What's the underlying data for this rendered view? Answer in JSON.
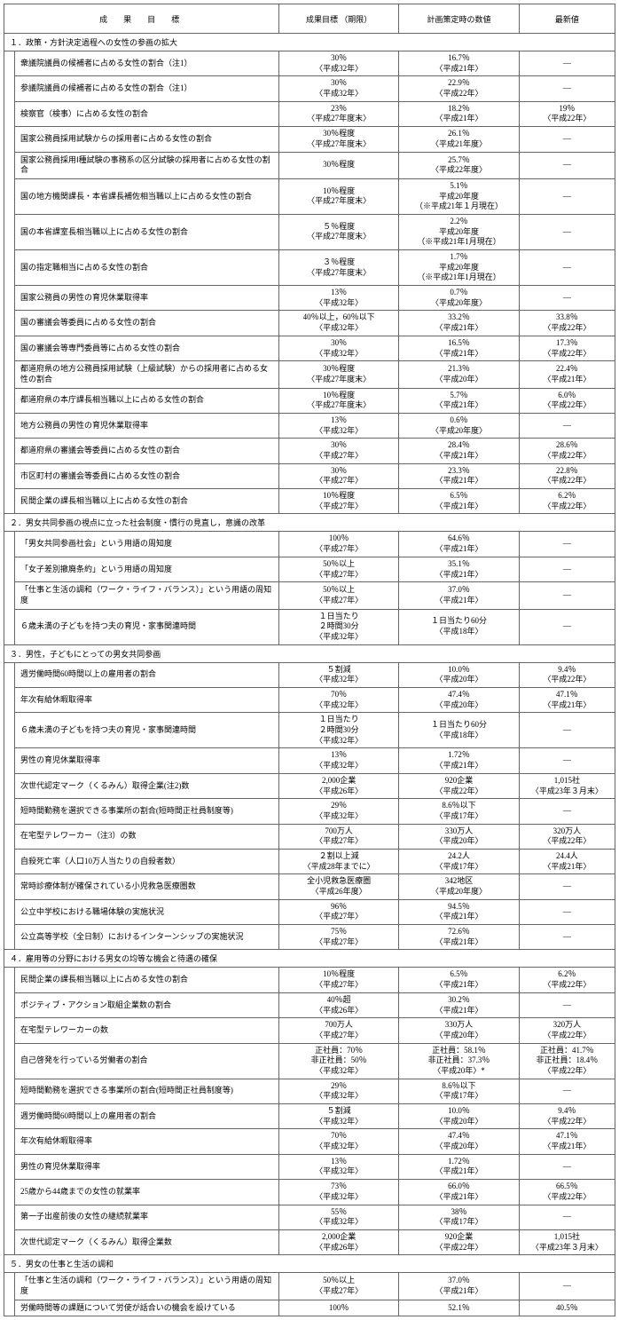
{
  "headers": {
    "goal": "成　果　目　標",
    "target": "成果目標\n（期限）",
    "plan": "計画策定時の数値",
    "latest": "最新値"
  },
  "sections": [
    {
      "title": "１．政策・方針決定過程への女性の参画の拡大",
      "rows": [
        {
          "label": "衆議院議員の候補者に占める女性の割合（注1）",
          "target": "30％\n〈平成32年〉",
          "plan": "16.7％\n〈平成21年〉",
          "latest": "―"
        },
        {
          "label": "参議院議員の候補者に占める女性の割合（注1）",
          "target": "30％\n〈平成32年〉",
          "plan": "22.9％\n〈平成22年〉",
          "latest": "―"
        },
        {
          "label": "検察官（検事）に占める女性の割合",
          "target": "23％\n〈平成27年度末〉",
          "plan": "18.2％\n〈平成21年〉",
          "latest": "19％\n〈平成22年〉"
        },
        {
          "label": "国家公務員採用試験からの採用者に占める女性の割合",
          "target": "30％程度\n〈平成27年度末〉",
          "plan": "26.1％\n〈平成21年度〉",
          "latest": "―"
        },
        {
          "label": "国家公務員採用Ⅰ種試験の事務系の区分試験の採用者に占める女性の割合",
          "target": "30％程度",
          "plan": "25.7％\n〈平成22年度〉",
          "latest": "―"
        },
        {
          "label": "国の地方機関課長・本省課長補佐相当職以上に占める女性の割合",
          "target": "10％程度\n〈平成27年度末〉",
          "plan": "5.1％\n平成20年度\n（※平成21年１月現在）",
          "latest": "―"
        },
        {
          "label": "国の本省課室長相当職以上に占める女性の割合",
          "target": "５％程度\n〈平成27年度末〉",
          "plan": "2.2％\n平成20年度\n（※平成21年1月現在）",
          "latest": "―"
        },
        {
          "label": "国の指定職相当に占める女性の割合",
          "target": "３％程度\n〈平成27年度末〉",
          "plan": "1.7％\n平成20年度\n（※平成21年1月現在）",
          "latest": "―"
        },
        {
          "label": "国家公務員の男性の育児休業取得率",
          "target": "13％\n〈平成32年〉",
          "plan": "0.7％\n〈平成20年度〉",
          "latest": "―"
        },
        {
          "label": "国の審議会等委員に占める女性の割合",
          "target": "40％以上，60％以下\n〈平成32年〉",
          "plan": "33.2％\n〈平成21年〉",
          "latest": "33.8％\n〈平成22年〉"
        },
        {
          "label": "国の審議会等専門委員等に占める女性の割合",
          "target": "30％\n〈平成32年〉",
          "plan": "16.5％\n〈平成21年〉",
          "latest": "17.3％\n〈平成22年〉"
        },
        {
          "label": "都道府県の地方公務員採用試験（上級試験）からの採用者に占める女性の割合",
          "target": "30％程度\n〈平成27年度末〉",
          "plan": "21.3％\n〈平成20年〉",
          "latest": "22.4％\n〈平成21年〉"
        },
        {
          "label": "都道府県の本庁課長相当職以上に占める女性の割合",
          "target": "10％程度\n〈平成27年度末〉",
          "plan": "5.7％\n〈平成21年〉",
          "latest": "6.0％\n〈平成22年〉"
        },
        {
          "label": "地方公務員の男性の育児休業取得率",
          "target": "13％\n〈平成32年〉",
          "plan": "0.6％\n〈平成20年度〉",
          "latest": "―"
        },
        {
          "label": "都道府県の審議会等委員に占める女性の割合",
          "target": "30％\n〈平成27年〉",
          "plan": "28.4％\n〈平成21年〉",
          "latest": "28.6％\n〈平成22年〉"
        },
        {
          "label": "市区町村の審議会等委員に占める女性の割合",
          "target": "30％\n〈平成27年〉",
          "plan": "23.3％\n〈平成21年〉",
          "latest": "22.8％\n〈平成22年〉"
        },
        {
          "label": "民間企業の課長相当職以上に占める女性の割合",
          "target": "10％程度\n〈平成27年〉",
          "plan": "6.5％\n〈平成21年〉",
          "latest": "6.2％\n〈平成22年〉"
        }
      ]
    },
    {
      "title": "２．男女共同参画の視点に立った社会制度・慣行の見直し，意識の改革",
      "rows": [
        {
          "label": "「男女共同参画社会」という用語の周知度",
          "target": "100％\n〈平成27年〉",
          "plan": "64.6％\n〈平成21年〉",
          "latest": "―"
        },
        {
          "label": "「女子差別撤廃条約」という用語の周知度",
          "target": "50％以上\n〈平成27年〉",
          "plan": "35.1％\n〈平成21年〉",
          "latest": "―"
        },
        {
          "label": "「仕事と生活の調和（ワーク・ライフ・バランス）」という用語の周知度",
          "target": "50％以上\n〈平成27年〉",
          "plan": "37.0％\n〈平成21年〉",
          "latest": "―"
        },
        {
          "label": "６歳未満の子どもを持つ夫の育児・家事関連時間",
          "target": "１日当たり\n２時間30分\n〈平成32年〉",
          "plan": "１日当たり60分\n〈平成18年〉",
          "latest": "―"
        }
      ]
    },
    {
      "title": "３．男性，子どもにとっての男女共同参画",
      "rows": [
        {
          "label": "週労働時間60時間以上の雇用者の割合",
          "target": "５割減\n〈平成32年〉",
          "plan": "10.0％\n〈平成20年〉",
          "latest": "9.4％\n〈平成22年〉"
        },
        {
          "label": "年次有給休暇取得率",
          "target": "70％\n〈平成32年〉",
          "plan": "47.4％\n〈平成20年〉",
          "latest": "47.1％\n〈平成21年〉"
        },
        {
          "label": "６歳未満の子どもを持つ夫の育児・家事関連時間",
          "target": "１日当たり\n２時間30分\n〈平成32年〉",
          "plan": "１日当たり60分\n〈平成18年〉",
          "latest": "―"
        },
        {
          "label": "男性の育児休業取得率",
          "target": "13％\n〈平成32年〉",
          "plan": "1.72％\n〈平成21年〉",
          "latest": "―"
        },
        {
          "label": "次世代認定マーク（くるみん）取得企業(注2)数",
          "target": "2,000企業\n〈平成26年〉",
          "plan": "920企業\n〈平成22年〉",
          "latest": "1,015社\n〈平成23年３月末〉"
        },
        {
          "label": "短時間勤務を選択できる事業所の割合(短時間正社員制度等)",
          "target": "29％\n〈平成32年〉",
          "plan": "8.6％以下\n〈平成17年〉",
          "latest": "―"
        },
        {
          "label": "在宅型テレワーカー（注3）の数",
          "target": "700万人\n〈平成27年〉",
          "plan": "330万人\n〈平成20年〉",
          "latest": "320万人\n〈平成22年〉"
        },
        {
          "label": "自殺死亡率（人口10万人当たりの自殺者数）",
          "target": "２割以上減\n〈平成28年までに〉",
          "plan": "24.2人\n〈平成17年〉",
          "latest": "24.4人\n〈平成21年〉"
        },
        {
          "label": "常時診療体制が確保されている小児救急医療圏数",
          "target": "全小児救急医療圏\n〈平成26年度〉",
          "plan": "342地区\n〈平成20年度〉",
          "latest": "―"
        },
        {
          "label": "公立中学校における職場体験の実施状況",
          "target": "96％\n〈平成27年〉",
          "plan": "94.5％\n〈平成21年〉",
          "latest": "―"
        },
        {
          "label": "公立高等学校（全日制）におけるインターンシップの実施状況",
          "target": "75％\n〈平成27年〉",
          "plan": "72.6％\n〈平成21年〉",
          "latest": "―"
        }
      ]
    },
    {
      "title": "４．雇用等の分野における男女の均等な機会と待遇の確保",
      "rows": [
        {
          "label": "民間企業の課長相当職以上に占める女性の割合",
          "target": "10％程度\n〈平成27年〉",
          "plan": "6.5％\n〈平成21年〉",
          "latest": "6.2％\n〈平成22年〉"
        },
        {
          "label": "ポジティブ・アクション取組企業数の割合",
          "target": "40％超\n〈平成26年〉",
          "plan": "30.2％\n〈平成21年〉",
          "latest": "―"
        },
        {
          "label": "在宅型テレワーカーの数",
          "target": "700万人\n〈平成27年〉",
          "plan": "330万人\n〈平成20年〉",
          "latest": "320万人\n〈平成22年〉"
        },
        {
          "label": "自己啓発を行っている労働者の割合",
          "target": "正社員：70％\n非正社員：50％\n〈平成32年〉",
          "plan": "正社員：58.1％\n非正社員：37.3％\n〈平成20年〉*",
          "latest": "正社員：41.7％\n非正社員：18.4％\n〈平成22年〉"
        },
        {
          "label": "短時間勤務を選択できる事業所の割合(短時間正社員制度等)",
          "target": "29％\n〈平成32年〉",
          "plan": "8.6％以下\n〈平成17年〉",
          "latest": "―"
        },
        {
          "label": "週労働時間60時間以上の雇用者の割合",
          "target": "５割減\n〈平成32年〉",
          "plan": "10.0％\n〈平成20年〉",
          "latest": "9.4％\n〈平成22年〉"
        },
        {
          "label": "年次有給休暇取得率",
          "target": "70％\n〈平成32年〉",
          "plan": "47.4％\n〈平成20年〉",
          "latest": "47.1％\n〈平成21年〉"
        },
        {
          "label": "男性の育児休業取得率",
          "target": "13％\n〈平成32年〉",
          "plan": "1.72％\n〈平成21年〉",
          "latest": "―"
        },
        {
          "label": "25歳から44歳までの女性の就業率",
          "target": "73％\n〈平成32年〉",
          "plan": "66.0％\n〈平成21年〉",
          "latest": "66.5％\n〈平成22年〉"
        },
        {
          "label": "第一子出産前後の女性の継続就業率",
          "target": "55％\n〈平成32年〉",
          "plan": "38％\n〈平成17年〉",
          "latest": "―"
        },
        {
          "label": "次世代認定マーク（くるみん）取得企業数",
          "target": "2,000企業\n〈平成26年〉",
          "plan": "920企業\n〈平成22年〉",
          "latest": "1,015社\n〈平成23年３月末〉"
        }
      ]
    },
    {
      "title": "５．男女の仕事と生活の調和",
      "rows": [
        {
          "label": "「仕事と生活の調和（ワーク・ライフ・バランス）」という用語の周知度",
          "target": "50％以上\n〈平成27年〉",
          "plan": "37.0％\n〈平成21年〉",
          "latest": "―"
        },
        {
          "label": "労働時間等の課題について労使が話合いの機会を設けている",
          "target": "100％",
          "plan": "52.1％",
          "latest": "40.5％"
        }
      ]
    }
  ]
}
